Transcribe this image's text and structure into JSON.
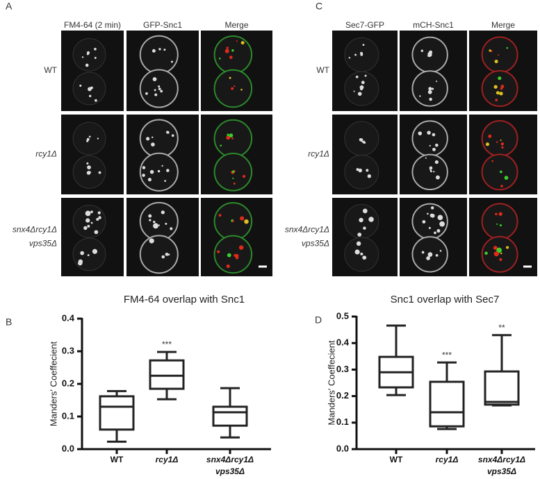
{
  "panels": [
    {
      "letter": "A",
      "columns": [
        "FM4-64 (2 min)",
        "GFP-Snc1",
        "Merge"
      ],
      "rows": [
        [
          "WT"
        ],
        [
          "rcy1Δ"
        ],
        [
          "snx4Δrcy1Δ",
          "vps35Δ"
        ]
      ]
    },
    {
      "letter": "C",
      "columns": [
        "Sec7-GFP",
        "mCH-Snc1",
        "Merge"
      ],
      "rows": [
        [
          "WT"
        ],
        [
          "rcy1Δ"
        ],
        [
          "snx4Δrcy1Δ",
          "vps35Δ"
        ]
      ]
    }
  ],
  "chart_data": [
    {
      "type": "box",
      "letter": "B",
      "title": "FM4-64 overlap with Snc1",
      "y_label": "Manders' Coeffecient",
      "categories": [
        [
          "WT"
        ],
        [
          "rcy1Δ"
        ],
        [
          "snx4Δrcy1Δ",
          "vps35Δ"
        ]
      ],
      "color": "#222222",
      "boxes": [
        {
          "min": 0.023,
          "q1": 0.06,
          "median": 0.13,
          "q3": 0.162,
          "max": 0.178
        },
        {
          "min": 0.153,
          "q1": 0.185,
          "median": 0.225,
          "q3": 0.272,
          "max": 0.298
        },
        {
          "min": 0.036,
          "q1": 0.072,
          "median": 0.113,
          "q3": 0.13,
          "max": 0.187
        }
      ],
      "significance": [
        null,
        "***",
        null
      ],
      "ylim": [
        0,
        0.4
      ],
      "yticks": [
        {
          "value": 0,
          "label": "0.0"
        },
        0.1,
        0.2,
        0.3,
        0.4
      ]
    },
    {
      "type": "box",
      "letter": "D",
      "title": "Snc1 overlap with Sec7",
      "y_label": "Manders' Coeffecient",
      "categories": [
        [
          "WT"
        ],
        [
          "rcy1Δ"
        ],
        [
          "snx4Δrcy1Δ",
          "vps35Δ"
        ]
      ],
      "color": "#222222",
      "boxes": [
        {
          "min": 0.204,
          "q1": 0.233,
          "median": 0.29,
          "q3": 0.348,
          "max": 0.466
        },
        {
          "min": 0.076,
          "q1": 0.086,
          "median": 0.139,
          "q3": 0.254,
          "max": 0.327
        },
        {
          "min": 0.165,
          "q1": 0.168,
          "median": 0.178,
          "q3": 0.293,
          "max": 0.43
        }
      ],
      "significance": [
        null,
        "***",
        "**"
      ],
      "ylim": [
        0,
        0.5
      ],
      "yticks": [
        {
          "value": 0,
          "label": "0.0"
        },
        0.1,
        0.2,
        0.3,
        0.4,
        0.5
      ]
    }
  ]
}
